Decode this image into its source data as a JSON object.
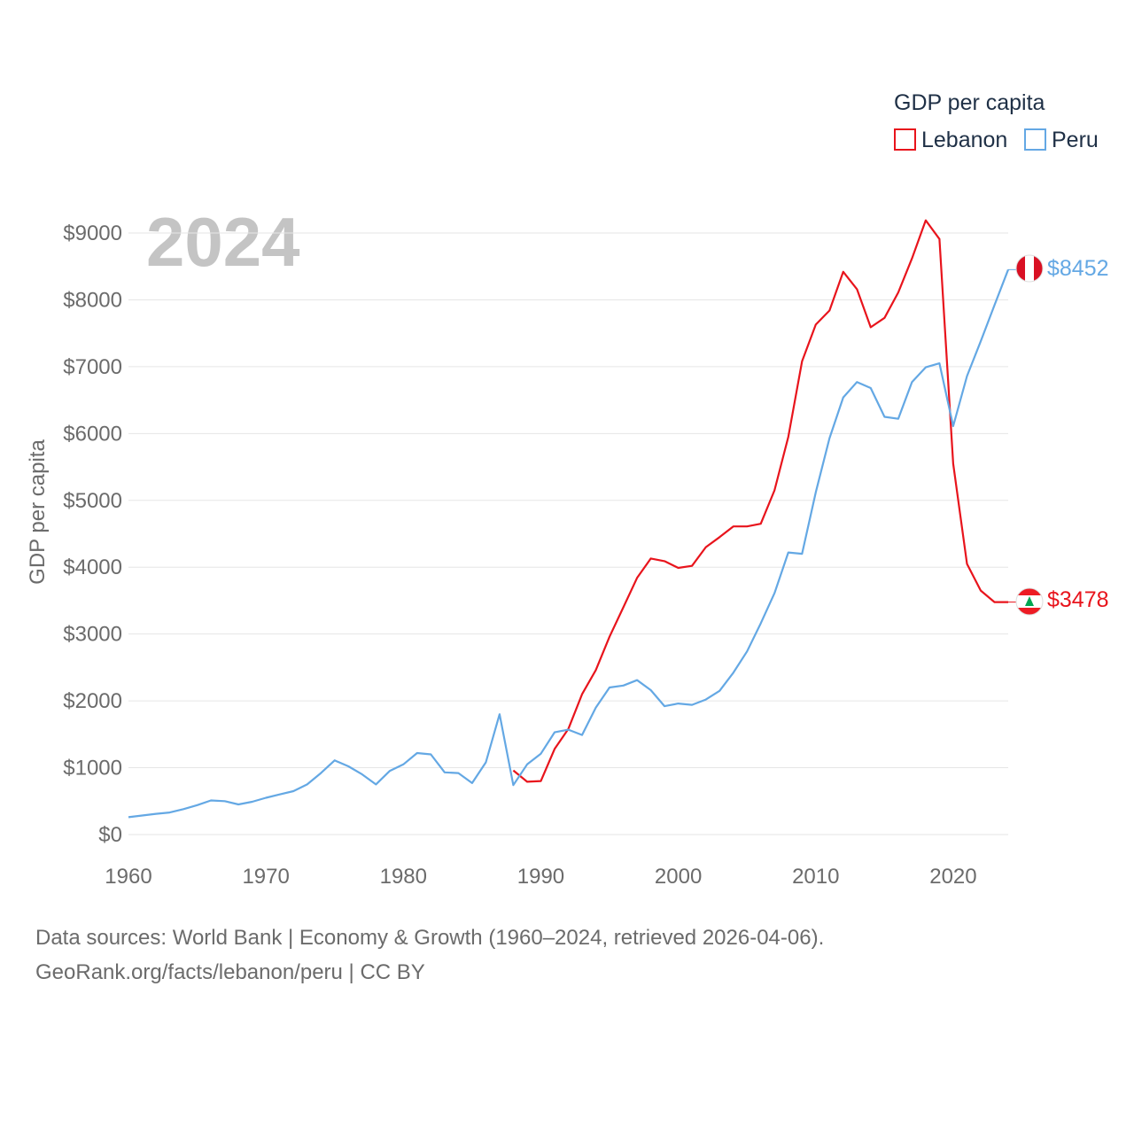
{
  "chart_data": {
    "type": "line",
    "title": "GDP per capita",
    "ylabel": "GDP per capita",
    "xlabel": "",
    "year_label": "2024",
    "xlim": [
      1960,
      2024
    ],
    "ylim": [
      0,
      9000
    ],
    "x_ticks": [
      1960,
      1970,
      1980,
      1990,
      2000,
      2010,
      2020
    ],
    "y_ticks": [
      {
        "value": 0,
        "label": "$0"
      },
      {
        "value": 1000,
        "label": "$1000"
      },
      {
        "value": 2000,
        "label": "$2000"
      },
      {
        "value": 3000,
        "label": "$3000"
      },
      {
        "value": 4000,
        "label": "$4000"
      },
      {
        "value": 5000,
        "label": "$5000"
      },
      {
        "value": 6000,
        "label": "$6000"
      },
      {
        "value": 7000,
        "label": "$7000"
      },
      {
        "value": 8000,
        "label": "$8000"
      },
      {
        "value": 9000,
        "label": "$9000"
      }
    ],
    "grid": true,
    "legend_position": "top-right",
    "series": [
      {
        "name": "Lebanon",
        "color": "#e8141c",
        "end_label": "$3478",
        "flag_icon": "lebanon-flag-icon",
        "x": [
          1988,
          1989,
          1990,
          1991,
          1992,
          1993,
          1994,
          1995,
          1996,
          1997,
          1998,
          1999,
          2000,
          2001,
          2002,
          2003,
          2004,
          2005,
          2006,
          2007,
          2008,
          2009,
          2010,
          2011,
          2012,
          2013,
          2014,
          2015,
          2016,
          2017,
          2018,
          2019,
          2020,
          2021,
          2022,
          2023,
          2024
        ],
        "values": [
          960,
          790,
          800,
          1280,
          1580,
          2100,
          2460,
          2960,
          3400,
          3840,
          4130,
          4090,
          3990,
          4020,
          4300,
          4450,
          4610,
          4610,
          4650,
          5150,
          5950,
          7080,
          7630,
          7840,
          8420,
          8160,
          7590,
          7730,
          8110,
          8620,
          9190,
          8910,
          5550,
          4050,
          3650,
          3478,
          3478
        ]
      },
      {
        "name": "Peru",
        "color": "#64a8e4",
        "end_label": "$8452",
        "flag_icon": "peru-flag-icon",
        "x": [
          1960,
          1961,
          1962,
          1963,
          1964,
          1965,
          1966,
          1967,
          1968,
          1969,
          1970,
          1971,
          1972,
          1973,
          1974,
          1975,
          1976,
          1977,
          1978,
          1979,
          1980,
          1981,
          1982,
          1983,
          1984,
          1985,
          1986,
          1987,
          1988,
          1989,
          1990,
          1991,
          1992,
          1993,
          1994,
          1995,
          1996,
          1997,
          1998,
          1999,
          2000,
          2001,
          2002,
          2003,
          2004,
          2005,
          2006,
          2007,
          2008,
          2009,
          2010,
          2011,
          2012,
          2013,
          2014,
          2015,
          2016,
          2017,
          2018,
          2019,
          2020,
          2021,
          2022,
          2023,
          2024
        ],
        "values": [
          260,
          285,
          310,
          330,
          380,
          440,
          510,
          500,
          450,
          490,
          550,
          600,
          650,
          750,
          920,
          1110,
          1020,
          900,
          750,
          950,
          1050,
          1220,
          1200,
          930,
          920,
          770,
          1080,
          1800,
          740,
          1050,
          1210,
          1530,
          1570,
          1490,
          1900,
          2200,
          2230,
          2310,
          2160,
          1920,
          1960,
          1940,
          2020,
          2150,
          2420,
          2740,
          3160,
          3610,
          4220,
          4200,
          5120,
          5930,
          6540,
          6770,
          6680,
          6250,
          6220,
          6770,
          6990,
          7050,
          6110,
          6860,
          7380,
          7920,
          8452
        ]
      }
    ]
  },
  "legend": {
    "title": "GDP per capita",
    "items": [
      {
        "label": "Lebanon",
        "color": "#e8141c"
      },
      {
        "label": "Peru",
        "color": "#64a8e4"
      }
    ]
  },
  "footer": {
    "line1": "Data sources: World Bank | Economy & Growth (1960–2024, retrieved 2026-04-06).",
    "line2": "GeoRank.org/facts/lebanon/peru | CC BY"
  }
}
